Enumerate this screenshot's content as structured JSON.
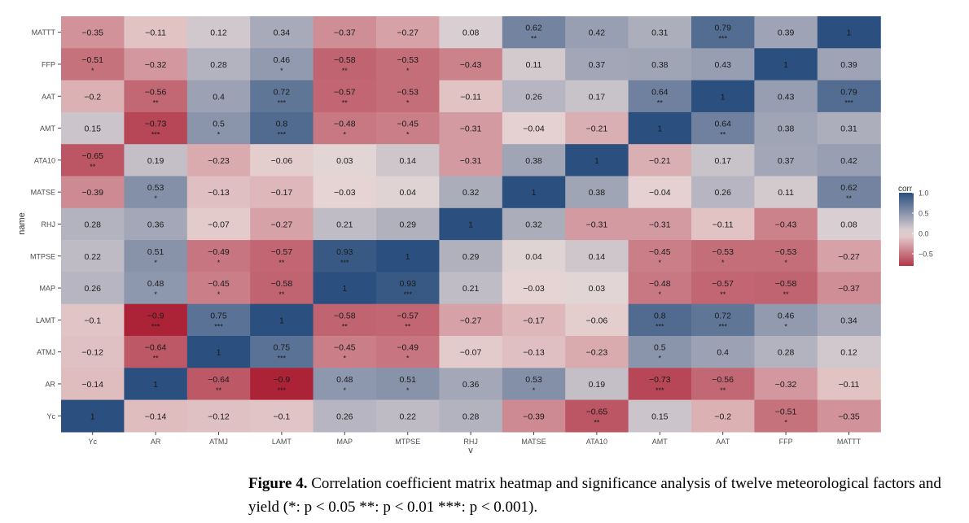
{
  "chart_data": {
    "type": "heatmap",
    "x_categories": [
      "Yc",
      "AR",
      "ATMJ",
      "LAMT",
      "MAP",
      "MTPSE",
      "RHJ",
      "MATSE",
      "ATA10",
      "AMT",
      "AAT",
      "FFP",
      "MATTT"
    ],
    "y_categories_top_to_bottom": [
      "MATTT",
      "FFP",
      "AAT",
      "AMT",
      "ATA10",
      "MATSE",
      "RHJ",
      "MTPSE",
      "MAP",
      "LAMT",
      "ATMJ",
      "AR",
      "Yc"
    ],
    "values": [
      [
        -0.35,
        -0.11,
        0.12,
        0.34,
        -0.37,
        -0.27,
        0.08,
        0.62,
        0.42,
        0.31,
        0.79,
        0.39,
        1
      ],
      [
        -0.51,
        -0.32,
        0.28,
        0.46,
        -0.58,
        -0.53,
        -0.43,
        0.11,
        0.37,
        0.38,
        0.43,
        1,
        0.39
      ],
      [
        -0.2,
        -0.56,
        0.4,
        0.72,
        -0.57,
        -0.53,
        -0.11,
        0.26,
        0.17,
        0.64,
        1,
        0.43,
        0.79
      ],
      [
        0.15,
        -0.73,
        0.5,
        0.8,
        -0.48,
        -0.45,
        -0.31,
        -0.04,
        -0.21,
        1,
        0.64,
        0.38,
        0.31
      ],
      [
        -0.65,
        0.19,
        -0.23,
        -0.06,
        0.03,
        0.14,
        -0.31,
        0.38,
        1,
        -0.21,
        0.17,
        0.37,
        0.42
      ],
      [
        -0.39,
        0.53,
        -0.13,
        -0.17,
        -0.03,
        0.04,
        0.32,
        1,
        0.38,
        -0.04,
        0.26,
        0.11,
        0.62
      ],
      [
        0.28,
        0.36,
        -0.07,
        -0.27,
        0.21,
        0.29,
        1,
        0.32,
        -0.31,
        -0.31,
        -0.11,
        -0.43,
        0.08
      ],
      [
        0.22,
        0.51,
        -0.49,
        -0.57,
        0.93,
        1,
        0.29,
        0.04,
        0.14,
        -0.45,
        -0.53,
        -0.53,
        -0.27
      ],
      [
        0.26,
        0.48,
        -0.45,
        -0.58,
        1,
        0.93,
        0.21,
        -0.03,
        0.03,
        -0.48,
        -0.57,
        -0.58,
        -0.37
      ],
      [
        -0.1,
        -0.9,
        0.75,
        1,
        -0.58,
        -0.57,
        -0.27,
        -0.17,
        -0.06,
        0.8,
        0.72,
        0.46,
        0.34
      ],
      [
        -0.12,
        -0.64,
        1,
        0.75,
        -0.45,
        -0.49,
        -0.07,
        -0.13,
        -0.23,
        0.5,
        0.4,
        0.28,
        0.12
      ],
      [
        -0.14,
        1,
        -0.64,
        -0.9,
        0.48,
        0.51,
        0.36,
        0.53,
        0.19,
        -0.73,
        -0.56,
        -0.32,
        -0.11
      ],
      [
        1,
        -0.14,
        -0.12,
        -0.1,
        0.26,
        0.22,
        0.28,
        -0.39,
        -0.65,
        0.15,
        -0.2,
        -0.51,
        -0.35
      ]
    ],
    "value_labels": [
      [
        "−0.35",
        "−0.11",
        "0.12",
        "0.34",
        "−0.37",
        "−0.27",
        "0.08",
        "0.62",
        "0.42",
        "0.31",
        "0.79",
        "0.39",
        "1"
      ],
      [
        "−0.51",
        "−0.32",
        "0.28",
        "0.46",
        "−0.58",
        "−0.53",
        "−0.43",
        "0.11",
        "0.37",
        "0.38",
        "0.43",
        "1",
        "0.39"
      ],
      [
        "−0.2",
        "−0.56",
        "0.4",
        "0.72",
        "−0.57",
        "−0.53",
        "−0.11",
        "0.26",
        "0.17",
        "0.64",
        "1",
        "0.43",
        "0.79"
      ],
      [
        "0.15",
        "−0.73",
        "0.5",
        "0.8",
        "−0.48",
        "−0.45",
        "−0.31",
        "−0.04",
        "−0.21",
        "1",
        "0.64",
        "0.38",
        "0.31"
      ],
      [
        "−0.65",
        "0.19",
        "−0.23",
        "−0.06",
        "0.03",
        "0.14",
        "−0.31",
        "0.38",
        "1",
        "−0.21",
        "0.17",
        "0.37",
        "0.42"
      ],
      [
        "−0.39",
        "0.53",
        "−0.13",
        "−0.17",
        "−0.03",
        "0.04",
        "0.32",
        "1",
        "0.38",
        "−0.04",
        "0.26",
        "0.11",
        "0.62"
      ],
      [
        "0.28",
        "0.36",
        "−0.07",
        "−0.27",
        "0.21",
        "0.29",
        "1",
        "0.32",
        "−0.31",
        "−0.31",
        "−0.11",
        "−0.43",
        "0.08"
      ],
      [
        "0.22",
        "0.51",
        "−0.49",
        "−0.57",
        "0.93",
        "1",
        "0.29",
        "0.04",
        "0.14",
        "−0.45",
        "−0.53",
        "−0.53",
        "−0.27"
      ],
      [
        "0.26",
        "0.48",
        "−0.45",
        "−0.58",
        "1",
        "0.93",
        "0.21",
        "−0.03",
        "0.03",
        "−0.48",
        "−0.57",
        "−0.58",
        "−0.37"
      ],
      [
        "−0.1",
        "−0.9",
        "0.75",
        "1",
        "−0.58",
        "−0.57",
        "−0.27",
        "−0.17",
        "−0.06",
        "0.8",
        "0.72",
        "0.46",
        "0.34"
      ],
      [
        "−0.12",
        "−0.64",
        "1",
        "0.75",
        "−0.45",
        "−0.49",
        "−0.07",
        "−0.13",
        "−0.23",
        "0.5",
        "0.4",
        "0.28",
        "0.12"
      ],
      [
        "−0.14",
        "1",
        "−0.64",
        "−0.9",
        "0.48",
        "0.51",
        "0.36",
        "0.53",
        "0.19",
        "−0.73",
        "−0.56",
        "−0.32",
        "−0.11"
      ],
      [
        "1",
        "−0.14",
        "−0.12",
        "−0.1",
        "0.26",
        "0.22",
        "0.28",
        "−0.39",
        "−0.65",
        "0.15",
        "−0.2",
        "−0.51",
        "−0.35"
      ]
    ],
    "significance": [
      [
        "",
        "",
        "",
        "",
        "",
        "",
        "",
        "**",
        "",
        "",
        "***",
        "",
        ""
      ],
      [
        "*",
        "",
        "",
        "*",
        "**",
        "*",
        "",
        "",
        "",
        "",
        "",
        "",
        ""
      ],
      [
        "",
        "**",
        "",
        "***",
        "**",
        "*",
        "",
        "",
        "",
        "**",
        "",
        "",
        "***"
      ],
      [
        "",
        "***",
        "*",
        "***",
        "*",
        "*",
        "",
        "",
        "",
        "",
        "**",
        "",
        ""
      ],
      [
        "**",
        "",
        "",
        "",
        "",
        "",
        "",
        "",
        "",
        "",
        "",
        "",
        ""
      ],
      [
        "",
        "*",
        "",
        "",
        "",
        "",
        "",
        "",
        "",
        "",
        "",
        "",
        "**"
      ],
      [
        "",
        "",
        "",
        "",
        "",
        "",
        "",
        "",
        "",
        "",
        "",
        "",
        ""
      ],
      [
        "",
        "*",
        "*",
        "**",
        "***",
        "",
        "",
        "",
        "",
        "*",
        "*",
        "*",
        ""
      ],
      [
        "",
        "*",
        "*",
        "**",
        "",
        "***",
        "",
        "",
        "",
        "*",
        "**",
        "**",
        ""
      ],
      [
        "",
        "***",
        "***",
        "",
        "**",
        "**",
        "",
        "",
        "",
        "***",
        "***",
        "*",
        ""
      ],
      [
        "",
        "**",
        "",
        "***",
        "*",
        "*",
        "",
        "",
        "",
        "*",
        "",
        "",
        ""
      ],
      [
        "",
        "",
        "**",
        "***",
        "*",
        "*",
        "",
        "*",
        "",
        "***",
        "**",
        "",
        ""
      ],
      [
        "",
        "",
        "",
        "",
        "",
        "",
        "",
        "",
        "**",
        "",
        "",
        "*",
        ""
      ]
    ],
    "xlabel": "v",
    "ylabel": "name",
    "legend": {
      "title": "corr",
      "position": "right",
      "ticks": [
        1.0,
        0.5,
        0.0,
        -0.5
      ],
      "tick_labels": [
        "1.0",
        "0.5",
        "0.0",
        "−0.5"
      ]
    },
    "color_scale": {
      "low": "#a50f26",
      "mid": "#e8d9d8",
      "high": "#2b4f7e",
      "range": [
        -1,
        1
      ]
    },
    "grid": false
  },
  "caption": {
    "label": "Figure 4.",
    "text": "Correlation coefficient matrix heatmap and significance analysis of twelve meteorological factors and yield (*: p < 0.05 **: p < 0.01 ***: p < 0.001)."
  }
}
